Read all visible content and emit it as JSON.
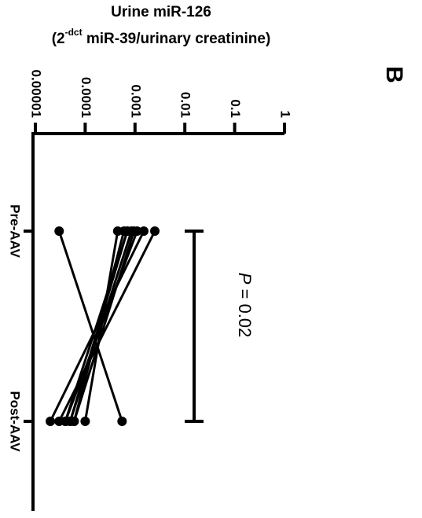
{
  "panel_label": "B",
  "chart_data": {
    "type": "line",
    "title": "",
    "ylabel_line1": "Urine miR-126",
    "ylabel_line2_pre": "(2",
    "ylabel_line2_sup": "-dct",
    "ylabel_line2_post": " miR-39/urinary creatinine)",
    "yscale": "log",
    "ylim": [
      1e-05,
      1
    ],
    "yticks": [
      1e-05,
      0.0001,
      0.001,
      0.01,
      0.1,
      1
    ],
    "ytick_labels": [
      "0.00001",
      "0.0001",
      "0.001",
      "0.01",
      "0.1",
      "1"
    ],
    "categories": [
      "Pre-AAV",
      "Post-AAV"
    ],
    "series": [
      {
        "values": [
          3e-05,
          0.00055
        ]
      },
      {
        "values": [
          0.00045,
          0.0001
        ]
      },
      {
        "values": [
          0.0006,
          6e-05
        ]
      },
      {
        "values": [
          0.0007,
          5e-05
        ]
      },
      {
        "values": [
          0.00085,
          5e-05
        ]
      },
      {
        "values": [
          0.0011,
          4e-05
        ]
      },
      {
        "values": [
          0.0015,
          2e-05
        ]
      },
      {
        "values": [
          0.0025,
          3e-05
        ]
      },
      {
        "values": [
          0.00095,
          6e-05
        ]
      },
      {
        "values": [
          0.0007,
          4e-05
        ]
      }
    ],
    "annotation": {
      "p_label": "P",
      "p_text": " = 0.02",
      "bracket": [
        "Pre-AAV",
        "Post-AAV"
      ]
    }
  }
}
